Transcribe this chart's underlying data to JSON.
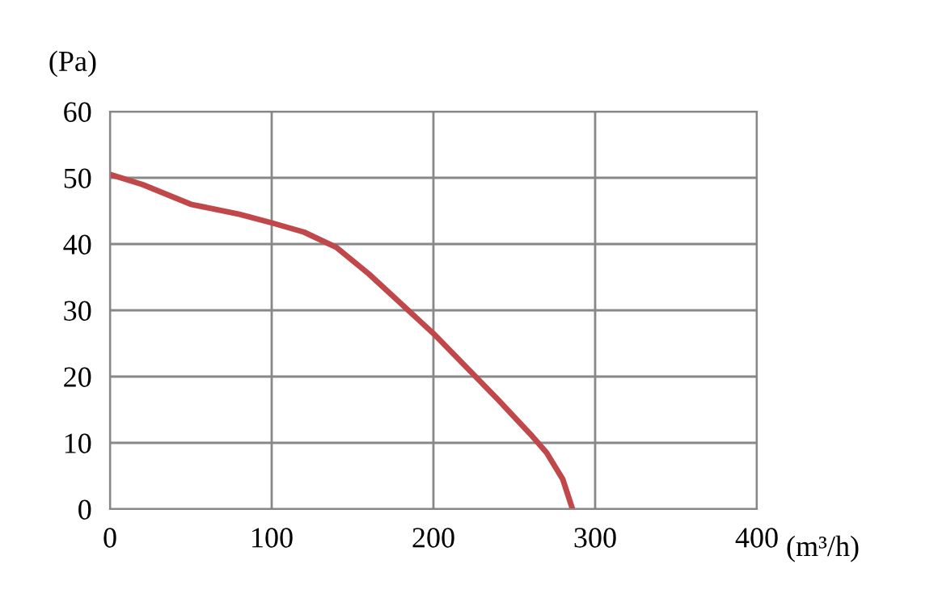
{
  "chart_data": {
    "type": "line",
    "xlabel": "(m³/h)",
    "ylabel": "(Pa)",
    "x": [
      0,
      20,
      50,
      80,
      100,
      120,
      140,
      160,
      180,
      200,
      220,
      240,
      260,
      270,
      280,
      286
    ],
    "series": [
      {
        "color": "#c0474a",
        "values": [
          50.5,
          49,
          46,
          44.5,
          43.2,
          41.8,
          39.5,
          35.5,
          31,
          26.5,
          21.5,
          16.5,
          11.3,
          8.5,
          4.5,
          0
        ]
      }
    ],
    "xlim": [
      0,
      400
    ],
    "xticks": [
      0,
      100,
      200,
      300,
      400
    ],
    "ylim": [
      0,
      60
    ],
    "yticks": [
      0,
      10,
      20,
      30,
      40,
      50,
      60
    ],
    "grid": true,
    "marker": "none",
    "line_style": "solid"
  }
}
